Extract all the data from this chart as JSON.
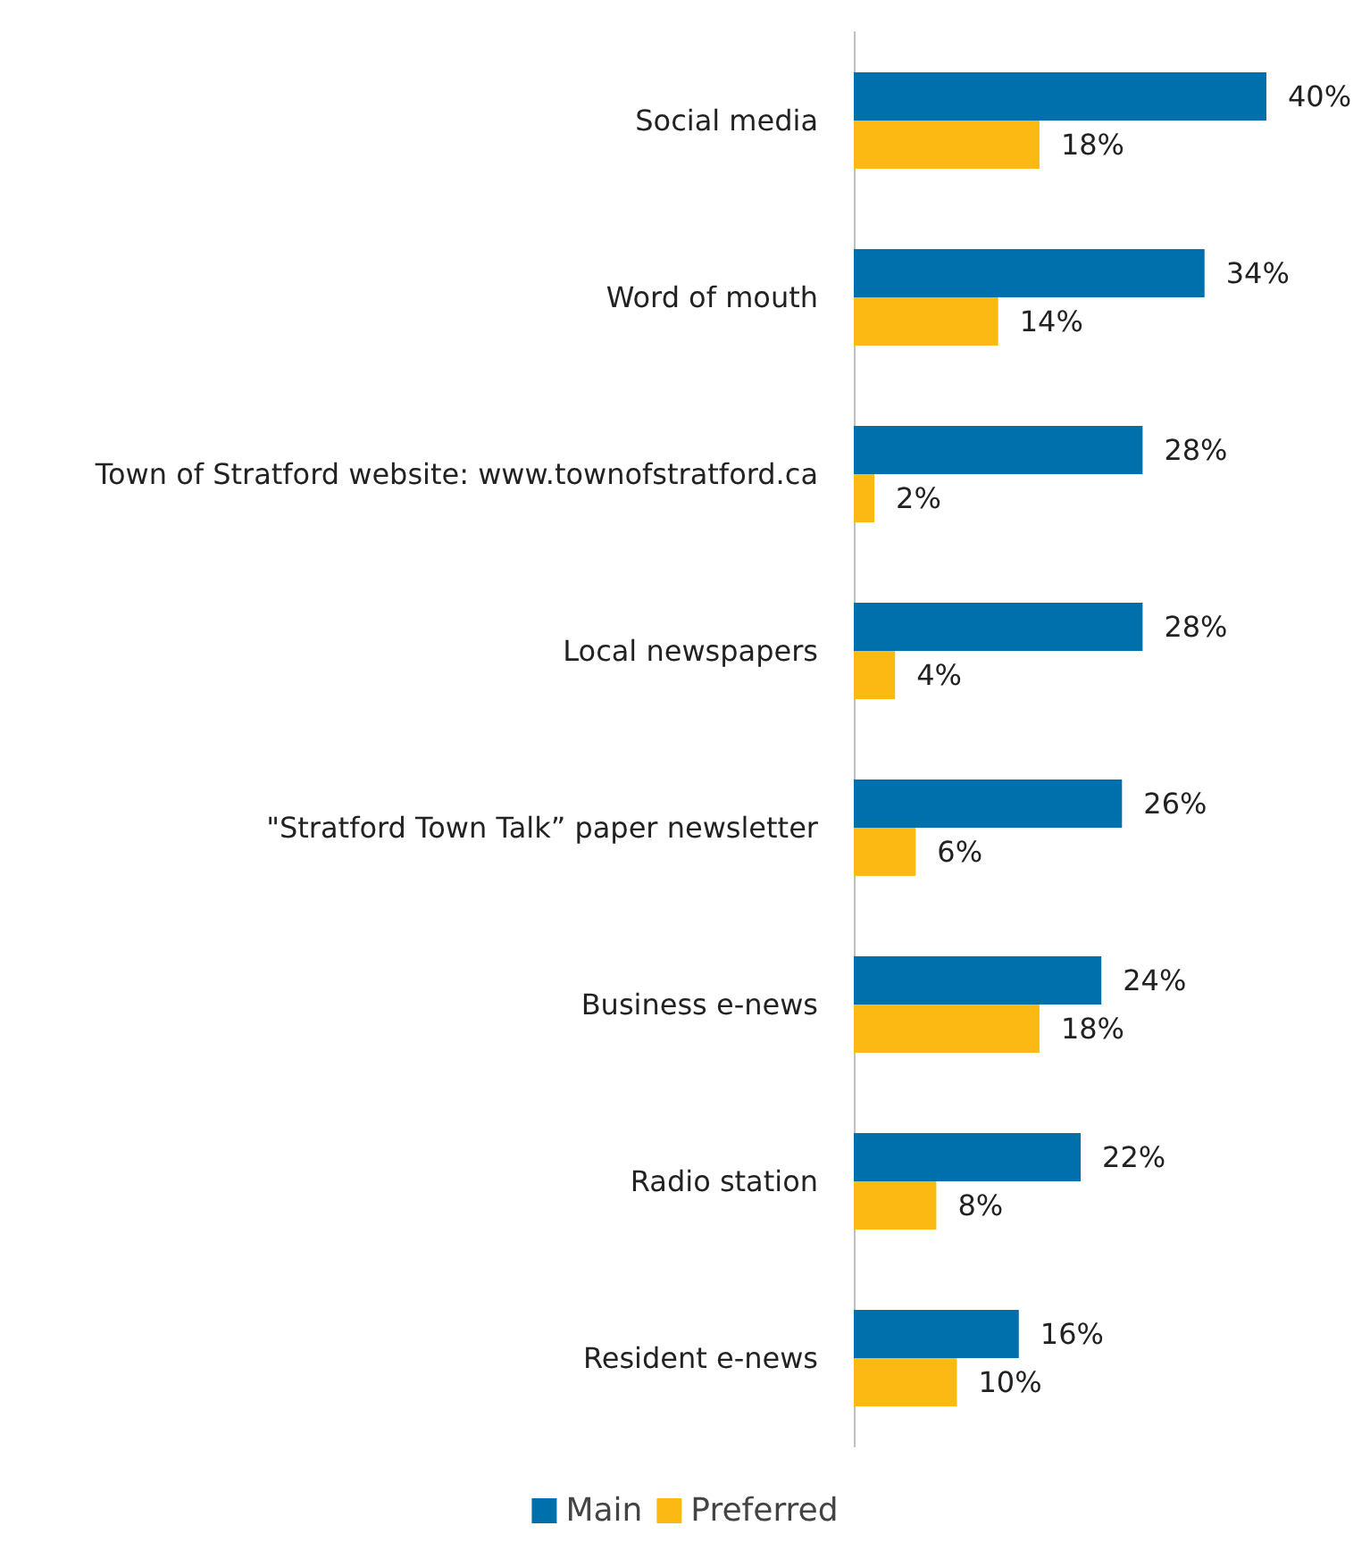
{
  "chart_data": {
    "type": "bar",
    "orientation": "horizontal",
    "categories": [
      "Social media",
      "Word of mouth",
      "Town of Stratford website: www.townofstratford.ca",
      "Local newspapers",
      "\"Stratford Town Talk” paper newsletter",
      "Business e-news",
      "Radio station",
      "Resident e-news"
    ],
    "series": [
      {
        "name": "Main",
        "color": "#0070ad",
        "values": [
          40,
          34,
          28,
          28,
          26,
          24,
          22,
          16
        ],
        "value_labels": [
          "40%",
          "34%",
          "28%",
          "28%",
          "26%",
          "24%",
          "22%",
          "16%"
        ]
      },
      {
        "name": "Preferred",
        "color": "#fdb913",
        "values": [
          18,
          14,
          2,
          4,
          6,
          18,
          8,
          10
        ],
        "value_labels": [
          "18%",
          "14%",
          "2%",
          "4%",
          "6%",
          "18%",
          "8%",
          "10%"
        ]
      }
    ],
    "legend": "bottom",
    "tick_labels": "y"
  }
}
